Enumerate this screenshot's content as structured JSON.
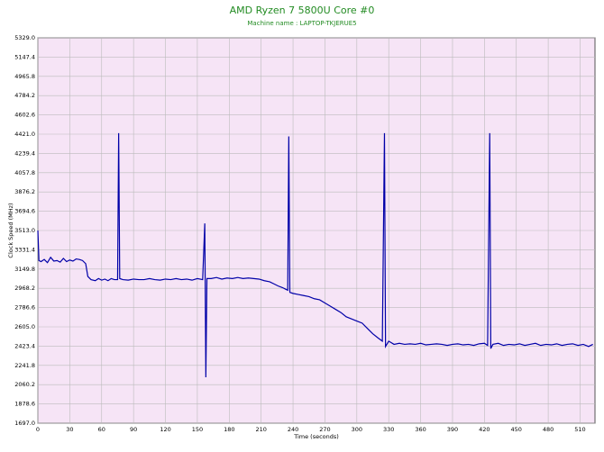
{
  "chart_data": {
    "type": "line",
    "title": "AMD Ryzen 7 5800U Core #0",
    "subtitle": "Machine name : LAPTOP-TKJERUE5",
    "x_label": "Time (seconds)",
    "y_label": "Clock Speed (MHz)",
    "grid": true,
    "x": [
      0,
      1,
      3,
      6,
      9,
      12,
      15,
      18,
      21,
      24,
      27,
      30,
      33,
      36,
      39,
      42,
      45,
      47,
      50,
      54,
      57,
      60,
      63,
      66,
      69,
      72,
      75,
      76,
      77,
      80,
      85,
      90,
      95,
      100,
      105,
      110,
      115,
      120,
      125,
      130,
      135,
      140,
      145,
      150,
      155,
      157,
      158,
      159,
      163,
      168,
      173,
      178,
      183,
      188,
      193,
      198,
      203,
      208,
      213,
      218,
      222,
      226,
      230,
      233,
      235,
      236,
      237,
      240,
      245,
      250,
      255,
      260,
      265,
      270,
      275,
      280,
      285,
      290,
      295,
      300,
      305,
      310,
      315,
      320,
      324,
      326,
      327,
      330,
      335,
      340,
      345,
      350,
      355,
      360,
      365,
      370,
      375,
      380,
      385,
      390,
      395,
      400,
      405,
      410,
      415,
      420,
      423,
      425,
      426,
      428,
      433,
      438,
      443,
      448,
      453,
      458,
      463,
      468,
      473,
      478,
      483,
      488,
      493,
      498,
      503,
      508,
      513,
      518,
      522
    ],
    "series": [
      {
        "name": "Core #0",
        "color": "#0000a8",
        "values": [
          3513,
          3230,
          3220,
          3240,
          3210,
          3260,
          3225,
          3230,
          3215,
          3250,
          3220,
          3235,
          3225,
          3245,
          3240,
          3230,
          3200,
          3080,
          3050,
          3040,
          3060,
          3045,
          3055,
          3040,
          3060,
          3050,
          3050,
          4430,
          3060,
          3050,
          3045,
          3055,
          3050,
          3050,
          3060,
          3050,
          3045,
          3055,
          3050,
          3060,
          3050,
          3055,
          3045,
          3060,
          3050,
          3580,
          2130,
          3060,
          3060,
          3070,
          3055,
          3065,
          3060,
          3070,
          3060,
          3065,
          3060,
          3055,
          3040,
          3030,
          3010,
          2990,
          2975,
          2960,
          2950,
          4400,
          2930,
          2920,
          2910,
          2900,
          2890,
          2870,
          2860,
          2830,
          2800,
          2770,
          2740,
          2700,
          2680,
          2660,
          2640,
          2590,
          2540,
          2500,
          2470,
          4430,
          2420,
          2470,
          2440,
          2450,
          2440,
          2445,
          2440,
          2450,
          2435,
          2440,
          2445,
          2440,
          2430,
          2440,
          2445,
          2435,
          2440,
          2430,
          2445,
          2450,
          2430,
          4430,
          2400,
          2440,
          2450,
          2430,
          2440,
          2435,
          2445,
          2430,
          2440,
          2450,
          2430,
          2440,
          2435,
          2445,
          2430,
          2440,
          2445,
          2430,
          2440,
          2420,
          2440
        ]
      }
    ],
    "xlim": [
      0,
      524
    ],
    "xticks": [
      0,
      30,
      60,
      90,
      120,
      150,
      180,
      210,
      240,
      270,
      300,
      330,
      360,
      390,
      420,
      450,
      480,
      510
    ],
    "ylim": [
      1697,
      5329
    ],
    "yticks": [
      {
        "value": 1697,
        "label": "1697.0"
      },
      1878.6,
      2060.2,
      2241.8,
      2423.4,
      {
        "value": 2605,
        "label": "2605.0"
      },
      2786.6,
      2968.2,
      3149.8,
      3331.4,
      {
        "value": 3513,
        "label": "3513.0"
      },
      3694.6,
      3876.2,
      4057.8,
      4239.4,
      {
        "value": 4421,
        "label": "4421.0"
      },
      4602.6,
      4784.2,
      4965.8,
      5147.4,
      {
        "value": 5329,
        "label": "5329.0"
      }
    ]
  }
}
